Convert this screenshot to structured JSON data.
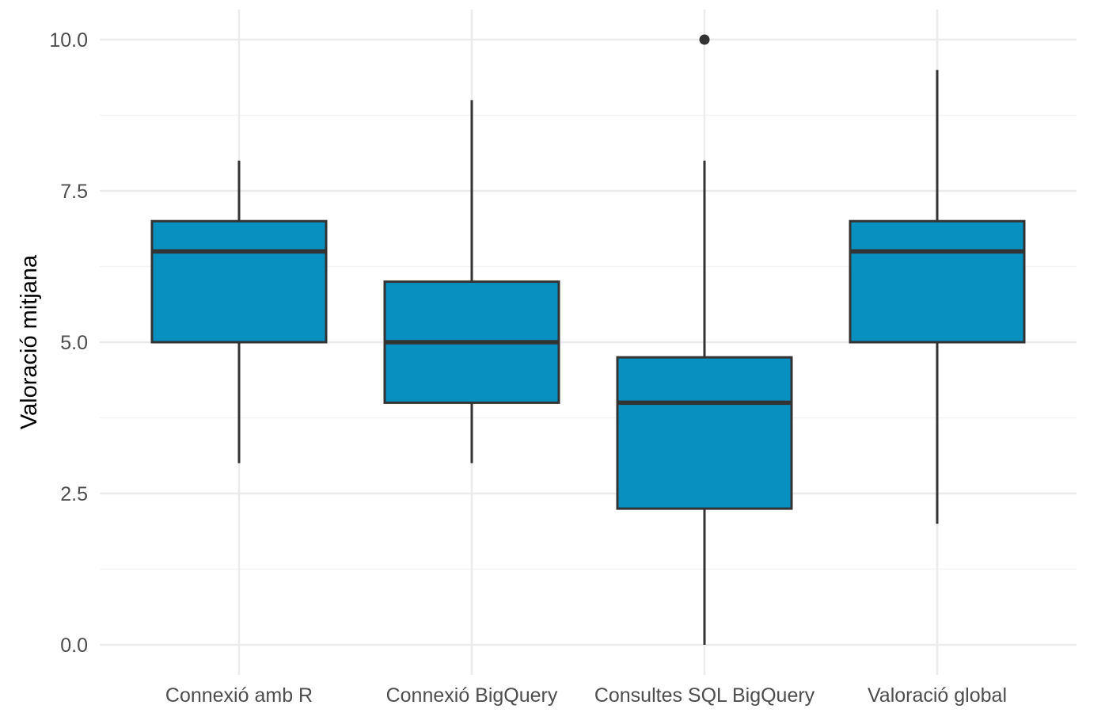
{
  "chart_data": {
    "type": "boxplot",
    "title": "",
    "xlabel": "",
    "ylabel": "Valoració mitjana",
    "ylim": [
      -0.45,
      10.3
    ],
    "yticks": [
      0.0,
      2.5,
      5.0,
      7.5,
      10.0
    ],
    "ytick_labels": [
      "0.0",
      "2.5",
      "5.0",
      "7.5",
      "10.0"
    ],
    "categories": [
      "Connexió amb R",
      "Connexió BigQuery",
      "Consultes SQL BigQuery",
      "Valoració global"
    ],
    "boxes": [
      {
        "category": "Connexió amb R",
        "whisker_low": 3.0,
        "q1": 5.0,
        "median": 6.5,
        "q3": 7.0,
        "whisker_high": 8.0,
        "outliers": []
      },
      {
        "category": "Connexió BigQuery",
        "whisker_low": 3.0,
        "q1": 4.0,
        "median": 5.0,
        "q3": 6.0,
        "whisker_high": 9.0,
        "outliers": []
      },
      {
        "category": "Consultes SQL BigQuery",
        "whisker_low": 0.0,
        "q1": 2.25,
        "median": 4.0,
        "q3": 4.75,
        "whisker_high": 8.0,
        "outliers": [
          10.0
        ]
      },
      {
        "category": "Valoració global",
        "whisker_low": 2.0,
        "q1": 5.0,
        "median": 6.5,
        "q3": 7.0,
        "whisker_high": 9.5,
        "outliers": []
      }
    ],
    "grid": true,
    "legend": "none",
    "colors": {
      "box_fill": "#0891c0",
      "box_stroke": "#333333",
      "grid": "#ebebeb",
      "tick_text": "#4d4d4d",
      "axis_title": "#000000"
    }
  }
}
